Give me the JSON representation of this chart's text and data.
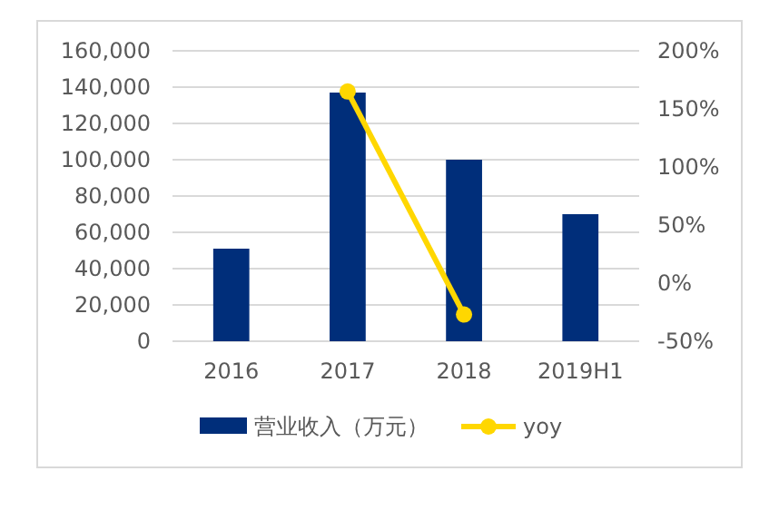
{
  "chart_data": {
    "type": "bar",
    "categories": [
      "2016",
      "2017",
      "2018",
      "2019H1"
    ],
    "series": [
      {
        "name": "营业收入（万元）",
        "color": "#002e7a",
        "values": [
          51000,
          137000,
          100000,
          70000
        ]
      },
      {
        "name": "yoy",
        "type": "line",
        "axis": "y2",
        "color": "#ffd700",
        "values": [
          null,
          165,
          -27,
          null
        ]
      }
    ],
    "ylim": [
      0,
      160000
    ],
    "yticks": [
      {
        "value": 0,
        "label": "0"
      },
      {
        "value": 20000,
        "label": "20,000"
      },
      {
        "value": 40000,
        "label": "40,000"
      },
      {
        "value": 60000,
        "label": "60,000"
      },
      {
        "value": 80000,
        "label": "80,000"
      },
      {
        "value": 100000,
        "label": "100,000"
      },
      {
        "value": 120000,
        "label": "120,000"
      },
      {
        "value": 140000,
        "label": "140,000"
      },
      {
        "value": 160000,
        "label": "160,000"
      }
    ],
    "y2lim": [
      -50,
      200
    ],
    "y2ticks": [
      {
        "value": -50,
        "label": "-50%"
      },
      {
        "value": 0,
        "label": "0%"
      },
      {
        "value": 50,
        "label": "50%"
      },
      {
        "value": 100,
        "label": "100%"
      },
      {
        "value": 150,
        "label": "150%"
      },
      {
        "value": 200,
        "label": "200%"
      }
    ],
    "grid": "y",
    "legend": "bottom",
    "marker": "circle"
  }
}
